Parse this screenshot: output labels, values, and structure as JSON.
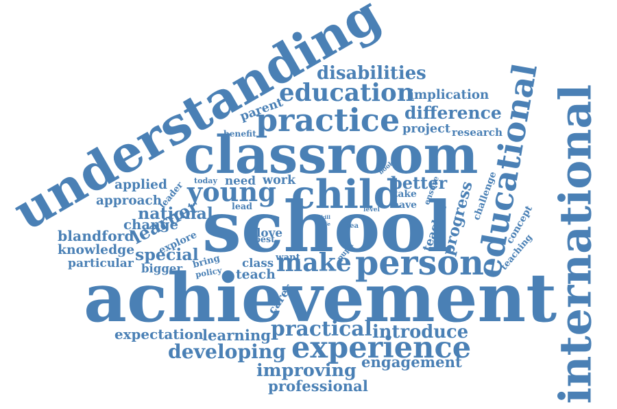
{
  "color": "#4a80b5",
  "words": [
    {
      "text": "achievement",
      "weight": 1.0
    },
    {
      "text": "school",
      "weight": 0.95
    },
    {
      "text": "understanding",
      "weight": 0.8
    },
    {
      "text": "classroom",
      "weight": 0.78
    },
    {
      "text": "international",
      "weight": 0.74
    },
    {
      "text": "child",
      "weight": 0.56
    },
    {
      "text": "practice",
      "weight": 0.55
    },
    {
      "text": "educational",
      "weight": 0.52
    },
    {
      "text": "make",
      "weight": 0.48
    },
    {
      "text": "person",
      "weight": 0.48
    },
    {
      "text": "young",
      "weight": 0.44
    },
    {
      "text": "experience",
      "weight": 0.42
    },
    {
      "text": "education",
      "weight": 0.4
    },
    {
      "text": "practical",
      "weight": 0.34
    },
    {
      "text": "learner",
      "weight": 0.33
    },
    {
      "text": "better",
      "weight": 0.3
    },
    {
      "text": "disabilities",
      "weight": 0.29
    },
    {
      "text": "developing",
      "weight": 0.3
    },
    {
      "text": "difference",
      "weight": 0.28
    },
    {
      "text": "progress",
      "weight": 0.27
    },
    {
      "text": "special",
      "weight": 0.27
    },
    {
      "text": "improving",
      "weight": 0.26
    },
    {
      "text": "introduce",
      "weight": 0.25
    },
    {
      "text": "engagement",
      "weight": 0.25
    },
    {
      "text": "expectation",
      "weight": 0.24
    },
    {
      "text": "learning",
      "weight": 0.24
    },
    {
      "text": "professional",
      "weight": 0.24
    },
    {
      "text": "national",
      "weight": 0.23
    },
    {
      "text": "applied",
      "weight": 0.22
    },
    {
      "text": "teacher",
      "weight": 0.22
    },
    {
      "text": "implication",
      "weight": 0.22
    },
    {
      "text": "change",
      "weight": 0.22
    },
    {
      "text": "knowledge",
      "weight": 0.22
    },
    {
      "text": "particular",
      "weight": 0.21
    },
    {
      "text": "blandford",
      "weight": 0.21
    },
    {
      "text": "work",
      "weight": 0.21
    },
    {
      "text": "need",
      "weight": 0.21
    },
    {
      "text": "teach",
      "weight": 0.21
    },
    {
      "text": "bigger",
      "weight": 0.2
    },
    {
      "text": "class",
      "weight": 0.2
    },
    {
      "text": "approach",
      "weight": 0.2
    },
    {
      "text": "challenge",
      "weight": 0.2
    },
    {
      "text": "project",
      "weight": 0.19
    },
    {
      "text": "research",
      "weight": 0.18
    },
    {
      "text": "parent",
      "weight": 0.18
    },
    {
      "text": "love",
      "weight": 0.17
    },
    {
      "text": "have",
      "weight": 0.16
    },
    {
      "text": "take",
      "weight": 0.16
    },
    {
      "text": "teaching",
      "weight": 0.16
    },
    {
      "text": "concept",
      "weight": 0.15
    },
    {
      "text": "explore",
      "weight": 0.15
    },
    {
      "text": "bring",
      "weight": 0.15
    },
    {
      "text": "leader",
      "weight": 0.14
    },
    {
      "text": "want",
      "weight": 0.14
    },
    {
      "text": "carer",
      "weight": 0.14
    },
    {
      "text": "ensure",
      "weight": 0.13
    },
    {
      "text": "lead",
      "weight": 0.13
    },
    {
      "text": "benefit",
      "weight": 0.13
    },
    {
      "text": "best",
      "weight": 0.13
    },
    {
      "text": "today",
      "weight": 0.12
    },
    {
      "text": "policy",
      "weight": 0.12
    },
    {
      "text": "pupil",
      "weight": 0.11
    },
    {
      "text": "book",
      "weight": 0.11
    },
    {
      "text": "level",
      "weight": 0.11
    },
    {
      "text": "idea",
      "weight": 0.1
    },
    {
      "text": "skill",
      "weight": 0.09
    },
    {
      "text": "life",
      "weight": 0.08
    }
  ]
}
